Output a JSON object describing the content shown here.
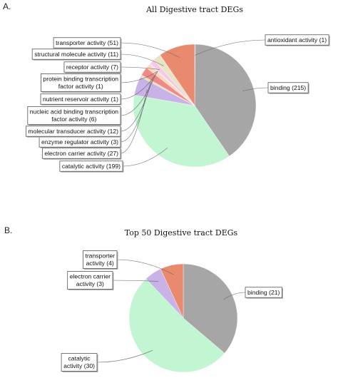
{
  "panel_a_letter": "A.",
  "panel_b_letter": "B.",
  "chart_data": [
    {
      "type": "pie",
      "title": "All Digestive  tract DEGs",
      "start_angle": 0,
      "direction": "clockwise",
      "legend": "none",
      "slices": [
        {
          "label": [
            "antioxidant activity (1)"
          ],
          "value": 1,
          "color": "#7b9bd1"
        },
        {
          "label": [
            "binding (215)"
          ],
          "value": 215,
          "color": "#a6a6a6"
        },
        {
          "label": [
            "catalytic activity (199)"
          ],
          "value": 199,
          "color": "#c2f5d2"
        },
        {
          "label": [
            "electron carrier activity (27)"
          ],
          "value": 27,
          "color": "#c9b3e6"
        },
        {
          "label": [
            "enzyme regulator activity (3)"
          ],
          "value": 3,
          "color": "#e3e3b0"
        },
        {
          "label": [
            "molecular transducer activity (12)"
          ],
          "value": 12,
          "color": "#f08a8a"
        },
        {
          "label": [
            "nucleic acid binding transcription",
            "factor activity (6)"
          ],
          "value": 6,
          "color": "#ffd9b3"
        },
        {
          "label": [
            "nutrient reservoir activity (1)"
          ],
          "value": 1,
          "color": "#b7e3f0"
        },
        {
          "label": [
            "protein binding transcription",
            "factor activity (1)"
          ],
          "value": 1,
          "color": "#d8d8f0"
        },
        {
          "label": [
            "receptor activity (7)"
          ],
          "value": 7,
          "color": "#f5c8e8"
        },
        {
          "label": [
            "structural molecule activity (11)"
          ],
          "value": 11,
          "color": "#e8e4c8"
        },
        {
          "label": [
            "transporter activity (51)"
          ],
          "value": 51,
          "color": "#e98a6e"
        }
      ]
    },
    {
      "type": "pie",
      "title": "Top 50 Digestive  tract DEGs",
      "start_angle": 0,
      "direction": "clockwise",
      "legend": "none",
      "slices": [
        {
          "label": [
            "binding (21)"
          ],
          "value": 21,
          "color": "#a6a6a6"
        },
        {
          "label": [
            "catalytic",
            "activity (30)"
          ],
          "value": 30,
          "color": "#c2f5d2"
        },
        {
          "label": [
            "electron carrier",
            "activity (3)"
          ],
          "value": 3,
          "color": "#c9b3e6"
        },
        {
          "label": [
            "transporter",
            "activity (4)"
          ],
          "value": 4,
          "color": "#e98a6e"
        }
      ]
    }
  ]
}
